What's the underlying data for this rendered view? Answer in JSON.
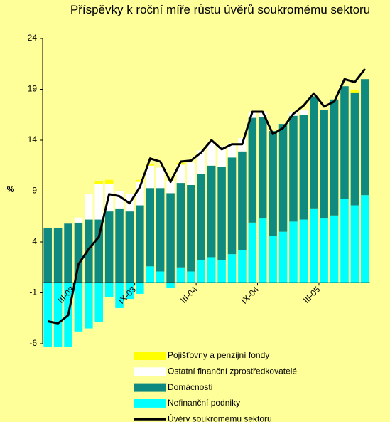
{
  "chart_data": {
    "type": "bar",
    "stacked": true,
    "title": "Příspěvky k roční míře růstu úvěrů soukromému sektoru",
    "ylabel": "%",
    "categories": [
      null,
      null,
      "III-03",
      null,
      null,
      null,
      null,
      null,
      "IX-03",
      null,
      null,
      null,
      null,
      null,
      "III-04",
      null,
      null,
      null,
      null,
      null,
      "IX-04",
      null,
      null,
      null,
      null,
      null,
      "III-05",
      null,
      null,
      null,
      null,
      null
    ],
    "series": [
      {
        "name": "Pojišťovny a penzijní fondy",
        "type": "bar",
        "color": "#ffff00",
        "values": [
          0,
          0,
          0,
          0,
          0,
          0.3,
          0.4,
          0,
          0,
          0.2,
          0.2,
          0,
          0,
          0.2,
          0,
          0,
          0,
          0,
          0,
          0,
          0,
          0,
          0,
          0,
          0,
          0,
          0,
          0,
          0,
          0,
          0.2,
          0
        ]
      },
      {
        "name": "Ostatní finanční zprostředkovatelé",
        "type": "bar",
        "color": "#ffffff",
        "values": [
          0,
          0,
          0,
          0.5,
          2.5,
          3.5,
          2.7,
          1.7,
          1.7,
          2.3,
          2.2,
          2.0,
          1.2,
          1.8,
          2.2,
          2.3,
          2.3,
          2.0,
          1.4,
          1.3,
          0.5,
          0.5,
          0,
          0,
          0.3,
          0.5,
          0,
          0,
          0,
          0,
          0,
          0
        ]
      },
      {
        "name": "Domácnosti",
        "type": "bar",
        "color": "#0f8a80",
        "values": [
          5.4,
          5.4,
          5.8,
          5.9,
          6.2,
          6.2,
          7.0,
          7.3,
          7.0,
          7.6,
          7.7,
          8.2,
          8.8,
          8.3,
          8.5,
          8.5,
          9.0,
          9.2,
          9.5,
          9.7,
          10.3,
          10.0,
          10.3,
          10.6,
          10.4,
          10.3,
          11.0,
          10.7,
          11.4,
          11.1,
          11.1,
          11.4
        ]
      },
      {
        "name": "Nefinanční podniky",
        "type": "bar",
        "color": "#00ffff",
        "values": [
          -6.3,
          -6.3,
          -6.3,
          -4.8,
          -4.5,
          -3.9,
          -1.4,
          -2.5,
          -1.6,
          -1.1,
          1.6,
          1.1,
          -0.5,
          1.5,
          1.1,
          2.2,
          2.5,
          2.2,
          2.8,
          3.2,
          5.9,
          6.3,
          4.6,
          5.0,
          6.0,
          6.2,
          7.3,
          6.3,
          6.6,
          8.2,
          7.6,
          8.6
        ]
      },
      {
        "name": "Úvěry soukromému sektoru",
        "type": "line",
        "color": "#000000",
        "values": [
          -3.8,
          -4.0,
          -3.2,
          1.8,
          3.3,
          4.5,
          8.7,
          8.5,
          7.8,
          9.4,
          12.2,
          11.9,
          9.9,
          11.9,
          12.0,
          12.8,
          14.0,
          13.1,
          13.6,
          13.6,
          16.8,
          16.8,
          14.6,
          15.2,
          16.6,
          17.4,
          18.6,
          17.3,
          17.8,
          20.0,
          19.7,
          21.0
        ]
      }
    ],
    "ylim": [
      -6,
      24
    ],
    "yticks": [
      -6,
      -1,
      4,
      9,
      14,
      19,
      24
    ],
    "grid": false
  }
}
